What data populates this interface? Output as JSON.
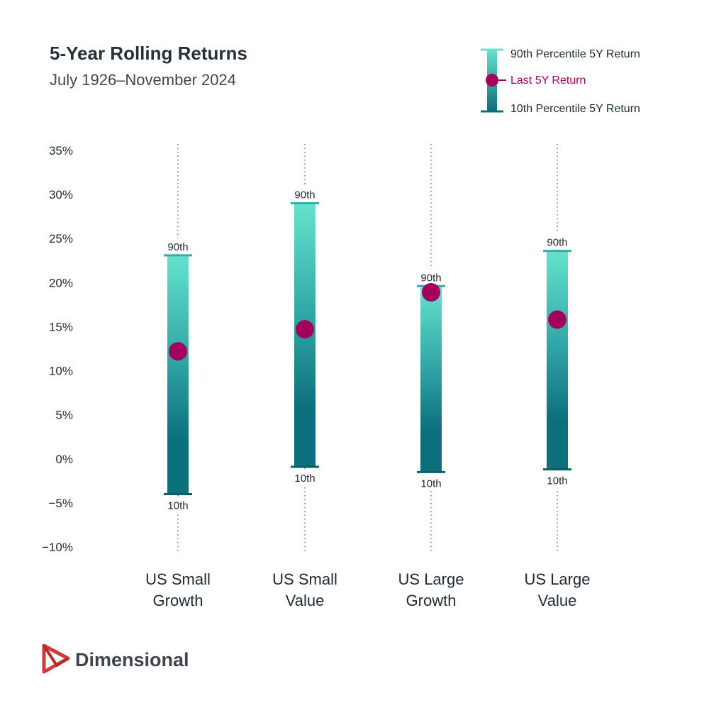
{
  "header": {
    "title": "5-Year Rolling Returns",
    "subtitle": "July 1926–November 2024"
  },
  "legend": {
    "p90": "90th Percentile 5Y Return",
    "last": "Last 5Y Return",
    "p10": "10th Percentile 5Y Return"
  },
  "brand": {
    "name": "Dimensional"
  },
  "colors": {
    "bar_top": "#64e3cc",
    "bar_bottom": "#0b6f7c",
    "cap": "#3ea9ad",
    "marker": "#a3005e",
    "marker_text": "#a3005e"
  },
  "chart_data": {
    "type": "range",
    "ylim": [
      -10,
      35
    ],
    "yticks": [
      "35%",
      "30%",
      "25%",
      "20%",
      "15%",
      "10%",
      "5%",
      "0%",
      "−5%",
      "−10%"
    ],
    "ytick_values": [
      35,
      30,
      25,
      20,
      15,
      10,
      5,
      0,
      -5,
      -10
    ],
    "categories": [
      {
        "line1": "US Small",
        "line2": "Growth"
      },
      {
        "line1": "US Small",
        "line2": "Value"
      },
      {
        "line1": "US Large",
        "line2": "Growth"
      },
      {
        "line1": "US Large",
        "line2": "Value"
      }
    ],
    "p90": [
      23.1,
      29.0,
      19.6,
      23.6
    ],
    "last": [
      12.2,
      14.7,
      18.9,
      15.8
    ],
    "p10": [
      -4.0,
      -0.9,
      -1.5,
      -1.2
    ],
    "top_label": "90th",
    "bottom_label": "10th"
  }
}
